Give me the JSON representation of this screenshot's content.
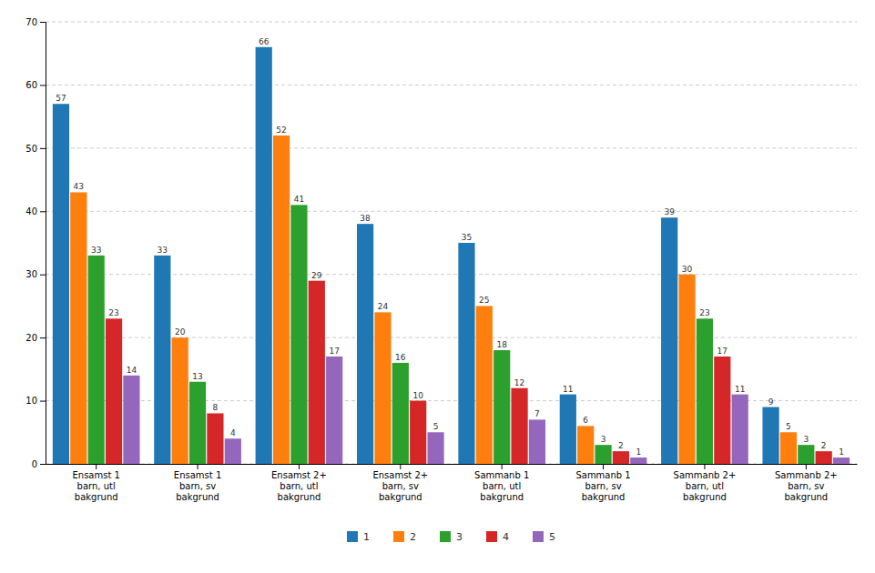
{
  "chart_data": {
    "type": "bar",
    "categories": [
      "Ensamst 1\nbarn, utl\nbakgrund",
      "Ensamst 1\nbarn, sv\nbakgrund",
      "Ensamst 2+\nbarn, utl\nbakgrund",
      "Ensamst 2+\nbarn, sv\nbakgrund",
      "Sammanb 1\nbarn, utl\nbakgrund",
      "Sammanb 1\nbarn, sv\nbakgrund",
      "Sammanb 2+\nbarn, utl\nbakgrund",
      "Sammanb 2+\nbarn, sv\nbakgrund"
    ],
    "series": [
      {
        "name": "1",
        "values": [
          57,
          33,
          66,
          38,
          35,
          11,
          39,
          9
        ]
      },
      {
        "name": "2",
        "values": [
          43,
          20,
          52,
          24,
          25,
          6,
          30,
          5
        ]
      },
      {
        "name": "3",
        "values": [
          33,
          13,
          41,
          16,
          18,
          3,
          23,
          3
        ]
      },
      {
        "name": "4",
        "values": [
          23,
          8,
          29,
          10,
          12,
          2,
          17,
          2
        ]
      },
      {
        "name": "5",
        "values": [
          14,
          4,
          17,
          5,
          7,
          1,
          11,
          1
        ]
      }
    ],
    "ylim": [
      0,
      70
    ],
    "yticks": [
      0,
      10,
      20,
      30,
      40,
      50,
      60,
      70
    ],
    "grid": true,
    "data_labels": true,
    "legend": "bottom"
  }
}
